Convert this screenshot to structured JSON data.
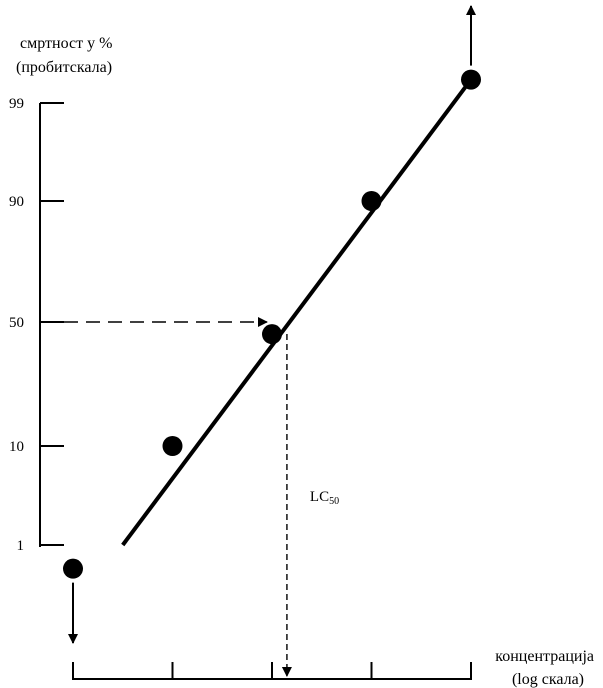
{
  "chart_data": {
    "type": "scatter",
    "ylabel_lines": [
      "смртност у %",
      "(пробитскала)"
    ],
    "xlabel_lines": [
      "концентрација",
      "(log скала)"
    ],
    "y_scale": "probit",
    "x_scale": "log",
    "yticks": [
      {
        "label": "99",
        "value": 99
      },
      {
        "label": "90",
        "value": 90
      },
      {
        "label": "50",
        "value": 50
      },
      {
        "label": "10",
        "value": 10
      },
      {
        "label": "1",
        "value": 1
      }
    ],
    "x_tick_count": 5,
    "points": [
      {
        "x": 0.0,
        "y": 0.5,
        "arrow": "down"
      },
      {
        "x": 1.0,
        "y": 10
      },
      {
        "x": 2.0,
        "y": 45
      },
      {
        "x": 3.0,
        "y": 90
      },
      {
        "x": 4.0,
        "y": 99.5,
        "arrow": "up"
      }
    ],
    "fit_line": {
      "x1": 0.5,
      "y1": 1,
      "x2": 4.0,
      "y2": 99.5
    },
    "lc50": {
      "label_main": "LC",
      "label_sub": "50",
      "x": 2.15,
      "y": 50
    },
    "grid": false,
    "legend": "none"
  }
}
